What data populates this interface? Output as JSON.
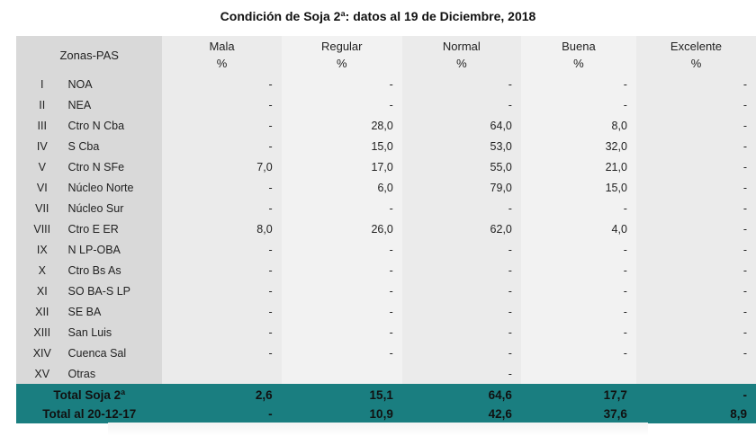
{
  "title": "Condición de Soja 2ª: datos al 19 de Diciembre, 2018",
  "header": {
    "zones": "Zonas-PAS",
    "cols": [
      {
        "name": "Mala",
        "unit": "%"
      },
      {
        "name": "Regular",
        "unit": "%"
      },
      {
        "name": "Normal",
        "unit": "%"
      },
      {
        "name": "Buena",
        "unit": "%"
      },
      {
        "name": "Excelente",
        "unit": "%"
      }
    ]
  },
  "rows": [
    {
      "num": "I",
      "zone": "NOA",
      "v": [
        "-",
        "-",
        "-",
        "-",
        "-"
      ]
    },
    {
      "num": "II",
      "zone": "NEA",
      "v": [
        "-",
        "-",
        "-",
        "-",
        "-"
      ]
    },
    {
      "num": "III",
      "zone": "Ctro N Cba",
      "v": [
        "-",
        "28,0",
        "64,0",
        "8,0",
        "-"
      ]
    },
    {
      "num": "IV",
      "zone": "S Cba",
      "v": [
        "-",
        "15,0",
        "53,0",
        "32,0",
        "-"
      ]
    },
    {
      "num": "V",
      "zone": "Ctro N SFe",
      "v": [
        "7,0",
        "17,0",
        "55,0",
        "21,0",
        "-"
      ]
    },
    {
      "num": "VI",
      "zone": "Núcleo Norte",
      "v": [
        "-",
        "6,0",
        "79,0",
        "15,0",
        "-"
      ]
    },
    {
      "num": "VII",
      "zone": "Núcleo Sur",
      "v": [
        "-",
        "-",
        "-",
        "-",
        "-"
      ]
    },
    {
      "num": "VIII",
      "zone": "Ctro E ER",
      "v": [
        "8,0",
        "26,0",
        "62,0",
        "4,0",
        "-"
      ]
    },
    {
      "num": "IX",
      "zone": "N LP-OBA",
      "v": [
        "-",
        "-",
        "-",
        "-",
        "-"
      ]
    },
    {
      "num": "X",
      "zone": "Ctro Bs As",
      "v": [
        "-",
        "-",
        "-",
        "-",
        "-"
      ]
    },
    {
      "num": "XI",
      "zone": "SO BA-S LP",
      "v": [
        "-",
        "-",
        "-",
        "-",
        "-"
      ]
    },
    {
      "num": "XII",
      "zone": "SE BA",
      "v": [
        "-",
        "-",
        "-",
        "-",
        "-"
      ]
    },
    {
      "num": "XIII",
      "zone": "San Luis",
      "v": [
        "-",
        "-",
        "-",
        "-",
        "-"
      ]
    },
    {
      "num": "XIV",
      "zone": "Cuenca Sal",
      "v": [
        "-",
        "-",
        "-",
        "-",
        "-"
      ]
    },
    {
      "num": "XV",
      "zone": "Otras",
      "v": [
        "",
        "",
        "-",
        "",
        ""
      ]
    }
  ],
  "totals": [
    {
      "label": "Total Soja 2ª",
      "v": [
        "2,6",
        "15,1",
        "64,6",
        "17,7",
        "-"
      ]
    },
    {
      "label": "Total al 20-12-17",
      "v": [
        "-",
        "10,9",
        "42,6",
        "37,6",
        "8,9"
      ]
    }
  ]
}
